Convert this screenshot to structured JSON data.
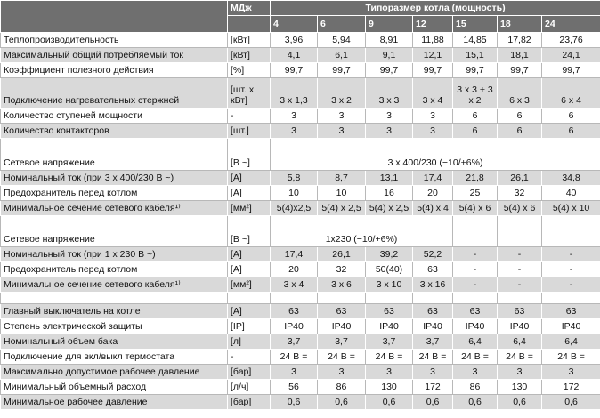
{
  "header": {
    "unit": "МДж",
    "group": "Типоразмер котла (мощность)",
    "sizes": [
      "4",
      "6",
      "9",
      "12",
      "15",
      "18",
      "24"
    ]
  },
  "rows": [
    {
      "label": "Теплопроизводительность",
      "unit": "[кВт]",
      "values": [
        "3,96",
        "5,94",
        "8,91",
        "11,88",
        "14,85",
        "17,82",
        "23,76"
      ]
    },
    {
      "label": "Максимальный общий потребляемый ток",
      "unit": "[кВт]",
      "values": [
        "4,1",
        "6,1",
        "9,1",
        "12,1",
        "15,1",
        "18,1",
        "24,1"
      ]
    },
    {
      "label": "Коэффициент полезного действия",
      "unit": "[%]",
      "values": [
        "99,7",
        "99,7",
        "99,7",
        "99,7",
        "99,7",
        "99,7",
        "99,7"
      ]
    },
    {
      "label": "Подключение нагревательных стержней",
      "unit": "[шт. x кВт]",
      "values": [
        "3 x 1,3",
        "3 x 2",
        "3 x 3",
        "3 x 4",
        "3 x 3 + 3 x 2",
        "6 x 3",
        "6 x 4"
      ]
    },
    {
      "label": "Количество ступеней мощности",
      "unit": "-",
      "values": [
        "3",
        "3",
        "3",
        "3",
        "6",
        "6",
        "6"
      ]
    },
    {
      "label": "Количество контакторов",
      "unit": "[шт.]",
      "values": [
        "3",
        "3",
        "3",
        "3",
        "6",
        "6",
        "6"
      ]
    },
    {
      "label": "Сетевое напряжение",
      "unit": "[В ~]",
      "value": "3 x 400/230 (−10/+6%)"
    },
    {
      "label": "Номинальный ток (при 3 x 400/230 В ~)",
      "unit": "[A]",
      "values": [
        "5,8",
        "8,7",
        "13,1",
        "17,4",
        "21,8",
        "26,1",
        "34,8"
      ]
    },
    {
      "label": "Предохранитель перед котлом",
      "unit": "[A]",
      "values": [
        "10",
        "10",
        "16",
        "20",
        "25",
        "32",
        "40"
      ]
    },
    {
      "label": "Минимальное сечение сетевого кабеля¹⁾",
      "unit": "[мм²]",
      "values": [
        "5(4)x2,5",
        "5(4) x 2,5",
        "5(4) x 2,5",
        "5(4) x 4",
        "5(4) x 6",
        "5(4) x 6",
        "5(4) x 10"
      ]
    },
    {
      "label": "Сетевое напряжение",
      "unit": "[В ~]",
      "value": "1x230 (−10/+6%)"
    },
    {
      "label": "Номинальный ток (при 1 x 230 В ~)",
      "unit": "[A]",
      "values": [
        "17,4",
        "26,1",
        "39,2",
        "52,2",
        "-",
        "-",
        "-"
      ]
    },
    {
      "label": "Предохранитель перед котлом",
      "unit": "[A]",
      "values": [
        "20",
        "32",
        "50(40)",
        "63",
        "-",
        "-",
        "-"
      ]
    },
    {
      "label": "Минимальное сечение сетевого кабеля¹⁾",
      "unit": "[мм²]",
      "values": [
        "3 x 4",
        "3 x 6",
        "3 x 10",
        "3 x 16",
        "-",
        "-",
        "-"
      ]
    },
    {
      "label": "Главный выключатель на котле",
      "unit": "[A]",
      "values": [
        "63",
        "63",
        "63",
        "63",
        "63",
        "63",
        "63"
      ]
    },
    {
      "label": "Степень электрической защиты",
      "unit": "[IP]",
      "values": [
        "IP40",
        "IP40",
        "IP40",
        "IP40",
        "IP40",
        "IP40",
        "IP40"
      ]
    },
    {
      "label": "Номинальный объем бака",
      "unit": "[л]",
      "values": [
        "3,7",
        "3,7",
        "3,7",
        "3,7",
        "6,4",
        "6,4",
        "6,4"
      ]
    },
    {
      "label": "Подключение для вкл/выкл термостата",
      "unit": "-",
      "values": [
        "24 В =",
        "24 В =",
        "24 В =",
        "24 В =",
        "24 В =",
        "24 В =",
        "24 В ="
      ]
    },
    {
      "label": "Максимально допустимое рабочее давление",
      "unit": "[бар]",
      "values": [
        "3",
        "3",
        "3",
        "3",
        "3",
        "3",
        "3"
      ]
    },
    {
      "label": "Минимальный объемный расход",
      "unit": "[л/ч]",
      "values": [
        "56",
        "86",
        "130",
        "172",
        "86",
        "130",
        "172"
      ]
    },
    {
      "label": "Минимальное рабочее давление",
      "unit": "[бар]",
      "values": [
        "0,6",
        "0,6",
        "0,6",
        "0,6",
        "0,6",
        "0,6",
        "0,6"
      ]
    }
  ]
}
